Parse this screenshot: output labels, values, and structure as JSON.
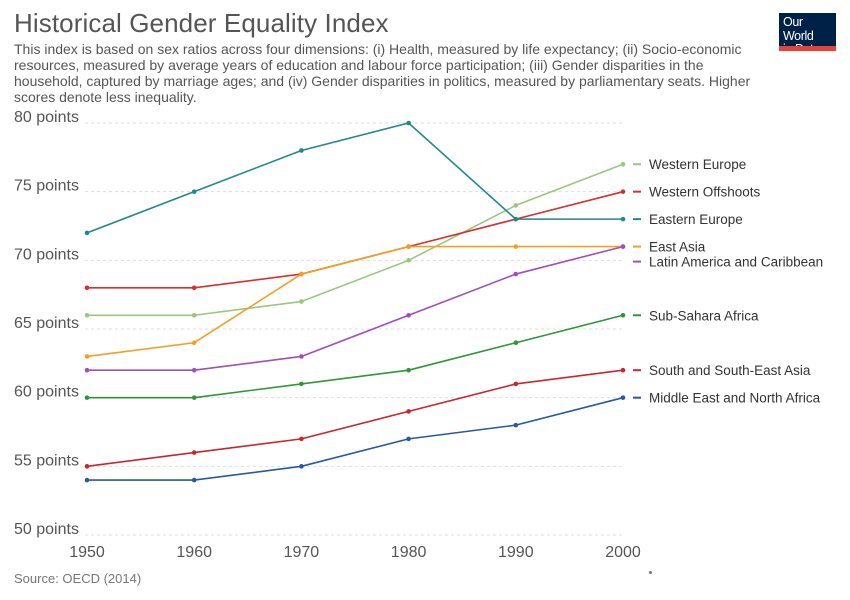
{
  "title": "Historical Gender Equality Index",
  "subtitle": "This index is based on sex ratios across four dimensions: (i) Health, measured by life expectancy; (ii) Socio-economic resources, measured by average years of education and labour force participation; (iii) Gender disparities in the household, captured by marriage ages; and (iv) Gender disparities in politics, measured by parliamentary seats. Higher scores denote less inequality.",
  "logo": {
    "line1": "Our World",
    "line2": "in Data",
    "colors": {
      "background": "#002147",
      "bar": "#e5423b"
    }
  },
  "source": "Source: OECD (2014)",
  "chart_data": {
    "type": "line",
    "title": "Historical Gender Equality Index",
    "xlabel": "",
    "ylabel": "",
    "x": [
      1950,
      1960,
      1970,
      1980,
      1990,
      2000
    ],
    "xlim": [
      1950,
      2000
    ],
    "ylim": [
      50,
      80
    ],
    "y_ticks": [
      50,
      55,
      60,
      65,
      70,
      75,
      80
    ],
    "y_tick_labels": [
      "50 points",
      "55 points",
      "60 points",
      "65 points",
      "70 points",
      "75 points",
      "80 points"
    ],
    "x_tick_labels": [
      "1950",
      "1960",
      "1970",
      "1980",
      "1990",
      "2000"
    ],
    "grid": "horizontal dashed",
    "legend": "inline labels at right end of lines",
    "series": [
      {
        "name": "Western Europe",
        "color": "#97c87c",
        "values": [
          66,
          66,
          67,
          70,
          74,
          77
        ]
      },
      {
        "name": "Western Offshoots",
        "color": "#d62f2f",
        "values": [
          68,
          68,
          69,
          71,
          73,
          75
        ]
      },
      {
        "name": "Eastern Europe",
        "color": "#21878f",
        "values": [
          72,
          75,
          78,
          80,
          73,
          73
        ]
      },
      {
        "name": "East Asia",
        "color": "#f2a024",
        "values": [
          63,
          64,
          69,
          71,
          71,
          71
        ]
      },
      {
        "name": "Latin America and Caribbean",
        "color": "#a04ebd",
        "values": [
          62,
          62,
          63,
          66,
          69,
          71
        ]
      },
      {
        "name": "Sub-Sahara Africa",
        "color": "#2e9638",
        "values": [
          60,
          60,
          61,
          62,
          64,
          66
        ]
      },
      {
        "name": "South and South-East Asia",
        "color": "#c8262b",
        "values": [
          55,
          56,
          57,
          59,
          61,
          62
        ]
      },
      {
        "name": "Middle East and North Africa",
        "color": "#2a56a6",
        "values": [
          54,
          54,
          55,
          57,
          58,
          60
        ]
      }
    ]
  }
}
